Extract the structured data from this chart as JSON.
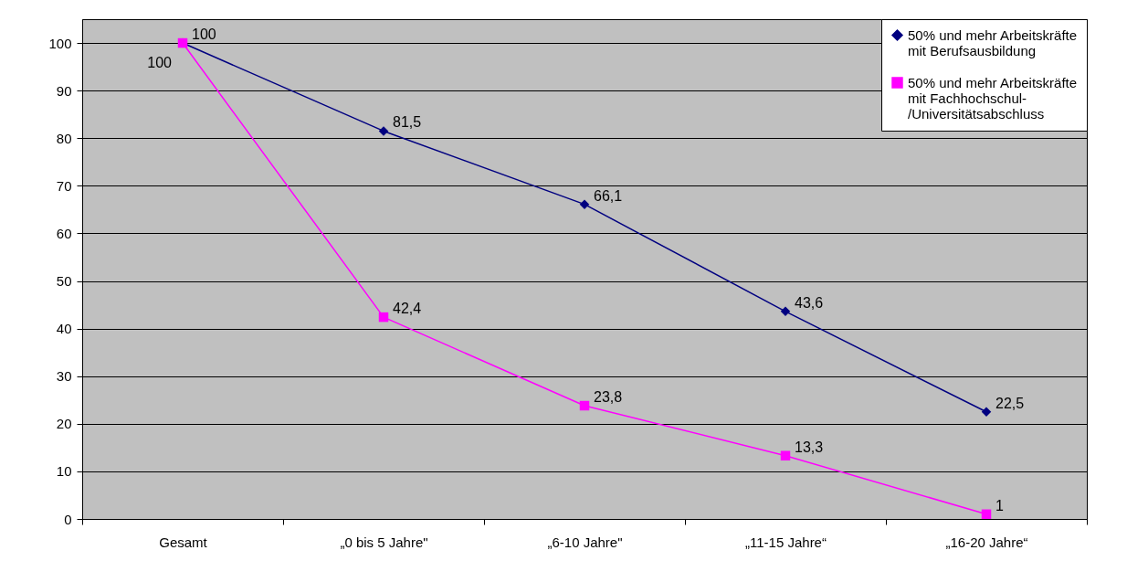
{
  "chart_data": {
    "type": "line",
    "categories": [
      "Gesamt",
      "„0 bis 5 Jahre\"",
      "„6-10 Jahre\"",
      "„11-15 Jahre“",
      "„16-20 Jahre“"
    ],
    "series": [
      {
        "name": "50% und mehr Arbeitskräfte mit Berufsausbildung",
        "color": "#000080",
        "marker": "diamond",
        "values": [
          100,
          81.5,
          66.1,
          43.6,
          22.5
        ],
        "value_labels": [
          "100",
          "81,5",
          "66,1",
          "43,6",
          "22,5"
        ]
      },
      {
        "name": "50% und mehr Arbeitskräfte mit Fachhochschul-/Universitätsabschluss",
        "color": "#ff00ff",
        "marker": "square",
        "values": [
          100,
          42.4,
          23.8,
          13.3,
          1
        ],
        "value_labels": [
          "100",
          "42,4",
          "23,8",
          "13,3",
          "1"
        ]
      }
    ],
    "ylim": [
      0,
      105
    ],
    "yticks": [
      0,
      10,
      20,
      30,
      40,
      50,
      60,
      70,
      80,
      90,
      100
    ],
    "grid": "y",
    "legend": "top right"
  }
}
